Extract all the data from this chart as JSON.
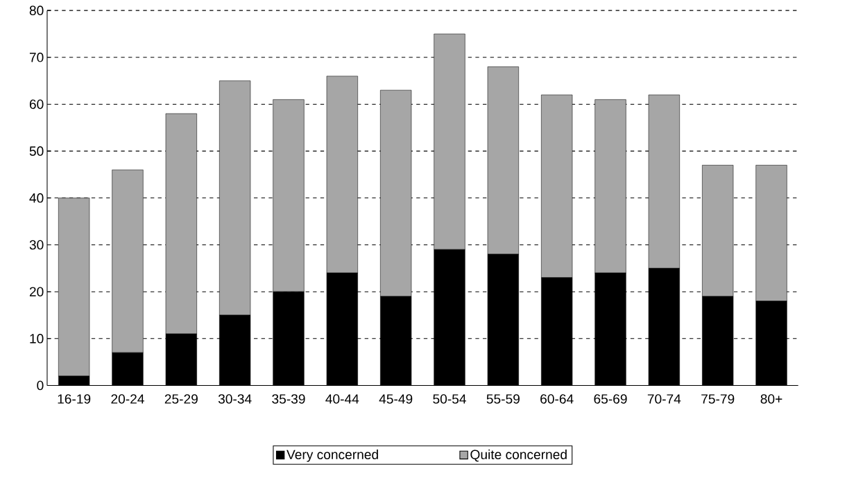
{
  "chart_data": {
    "type": "bar",
    "stacked": true,
    "categories": [
      "16-19",
      "20-24",
      "25-29",
      "30-34",
      "35-39",
      "40-44",
      "45-49",
      "50-54",
      "55-59",
      "60-64",
      "65-69",
      "70-74",
      "75-79",
      "80+"
    ],
    "series": [
      {
        "name": "Very concerned",
        "color": "#000000",
        "values": [
          2,
          7,
          11,
          15,
          20,
          24,
          19,
          29,
          28,
          23,
          24,
          25,
          19,
          18
        ]
      },
      {
        "name": "Quite concerned",
        "color": "#a6a6a6",
        "values": [
          38,
          39,
          47,
          50,
          41,
          42,
          44,
          46,
          40,
          39,
          37,
          37,
          28,
          29
        ]
      }
    ],
    "ylim": [
      0,
      80
    ],
    "yticks": [
      0,
      10,
      20,
      30,
      40,
      50,
      60,
      70,
      80
    ],
    "grid": "y",
    "legend": "bottom"
  }
}
